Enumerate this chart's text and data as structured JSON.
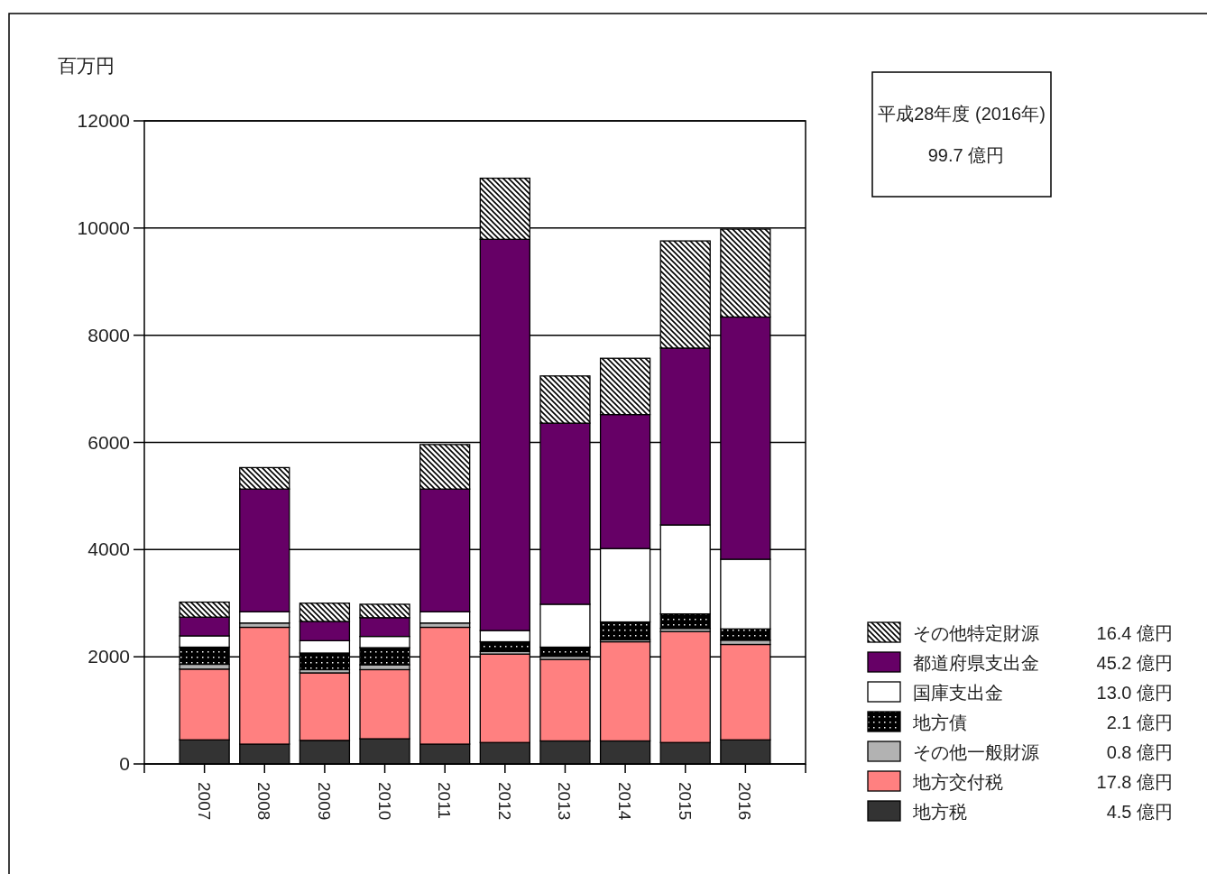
{
  "chart_data": {
    "type": "bar",
    "stacked": true,
    "ylabel": "百万円",
    "categories": [
      "2007",
      "2008",
      "2009",
      "2010",
      "2011",
      "2012",
      "2013",
      "2014",
      "2015",
      "2016"
    ],
    "series": [
      {
        "name": "地方税",
        "color": "#333333",
        "values": [
          450,
          370,
          440,
          470,
          370,
          400,
          430,
          430,
          400,
          450
        ]
      },
      {
        "name": "地方交付税",
        "color": "#ff8080",
        "values": [
          1320,
          2180,
          1260,
          1290,
          2180,
          1650,
          1520,
          1850,
          2070,
          1780
        ]
      },
      {
        "name": "その他一般財源",
        "color": "#b2b2b2",
        "values": [
          90,
          80,
          60,
          90,
          80,
          50,
          60,
          40,
          60,
          80
        ]
      },
      {
        "name": "地方債",
        "color": "#000000",
        "values": [
          320,
          0,
          310,
          320,
          0,
          180,
          170,
          330,
          270,
          210
        ]
      },
      {
        "name": "国庫支出金",
        "color": "#ffffff",
        "values": [
          210,
          210,
          230,
          210,
          210,
          210,
          800,
          1370,
          1660,
          1300
        ]
      },
      {
        "name": "都道府県支出金",
        "color": "#660066",
        "values": [
          350,
          2290,
          360,
          350,
          2290,
          7300,
          3380,
          2500,
          3300,
          4520
        ]
      },
      {
        "name": "その他特定財源",
        "color": "#000000",
        "values": [
          280,
          400,
          340,
          250,
          830,
          1140,
          880,
          1050,
          2000,
          1640
        ]
      }
    ],
    "ylim": [
      0,
      12000
    ],
    "yticks": [
      0,
      2000,
      4000,
      6000,
      8000,
      10000,
      12000
    ],
    "grid": "y",
    "legend": "bottom right",
    "annotations": [
      "平成28年度 (2016年)",
      "99.7 億円",
      "4.5 億円",
      "17.8 億円",
      "0.8 億円",
      "2.1 億円",
      "13.0 億円",
      "45.2 億円",
      "16.4 億円"
    ]
  }
}
